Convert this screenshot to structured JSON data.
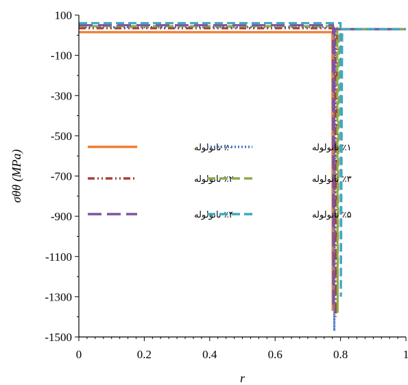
{
  "chart_data": {
    "type": "line",
    "xlabel": "r",
    "ylabel": "σθθ (MPa)",
    "xlim": [
      0,
      1
    ],
    "ylim": [
      -1500,
      100
    ],
    "x_ticks": [
      "0",
      "0.2",
      "0.4",
      "0.6",
      "0.8",
      "1"
    ],
    "y_ticks": [
      "100",
      "-100",
      "-300",
      "-500",
      "-700",
      "-900",
      "-1100",
      "-1300",
      "-1500"
    ],
    "grid": false,
    "legend_position": "center-left",
    "series": [
      {
        "name": "٪۰ نانولوله",
        "color": "#ed7d31",
        "dash": "solid",
        "x": [
          0,
          0.775,
          0.776,
          0.78,
          1
        ],
        "y": [
          15,
          15,
          -1370,
          30,
          30
        ]
      },
      {
        "name": "٪۱ نانولوله",
        "color": "#4472c4",
        "dash": "dotted",
        "x": [
          0,
          0.78,
          0.781,
          0.785,
          1
        ],
        "y": [
          40,
          40,
          -1470,
          30,
          30
        ]
      },
      {
        "name": "٪۲ نانولوله",
        "color": "#a5403a",
        "dash": "dashdotdot",
        "x": [
          0,
          0.785,
          0.786,
          0.79,
          1
        ],
        "y": [
          35,
          35,
          -1400,
          30,
          30
        ]
      },
      {
        "name": "٪۳ نانولوله",
        "color": "#8faa4c",
        "dash": "dash",
        "x": [
          0,
          0.79,
          0.791,
          0.795,
          1
        ],
        "y": [
          45,
          45,
          -1380,
          30,
          30
        ]
      },
      {
        "name": "٪۴ نانولوله",
        "color": "#7b55a0",
        "dash": "longdash",
        "x": [
          0,
          0.777,
          0.778,
          0.782,
          1
        ],
        "y": [
          50,
          50,
          -1350,
          30,
          30
        ]
      },
      {
        "name": "٪۵ نانولوله",
        "color": "#3fa8c1",
        "dash": "dash",
        "x": [
          0,
          0.8,
          0.801,
          0.805,
          1
        ],
        "y": [
          60,
          60,
          -1300,
          30,
          30
        ]
      }
    ]
  }
}
